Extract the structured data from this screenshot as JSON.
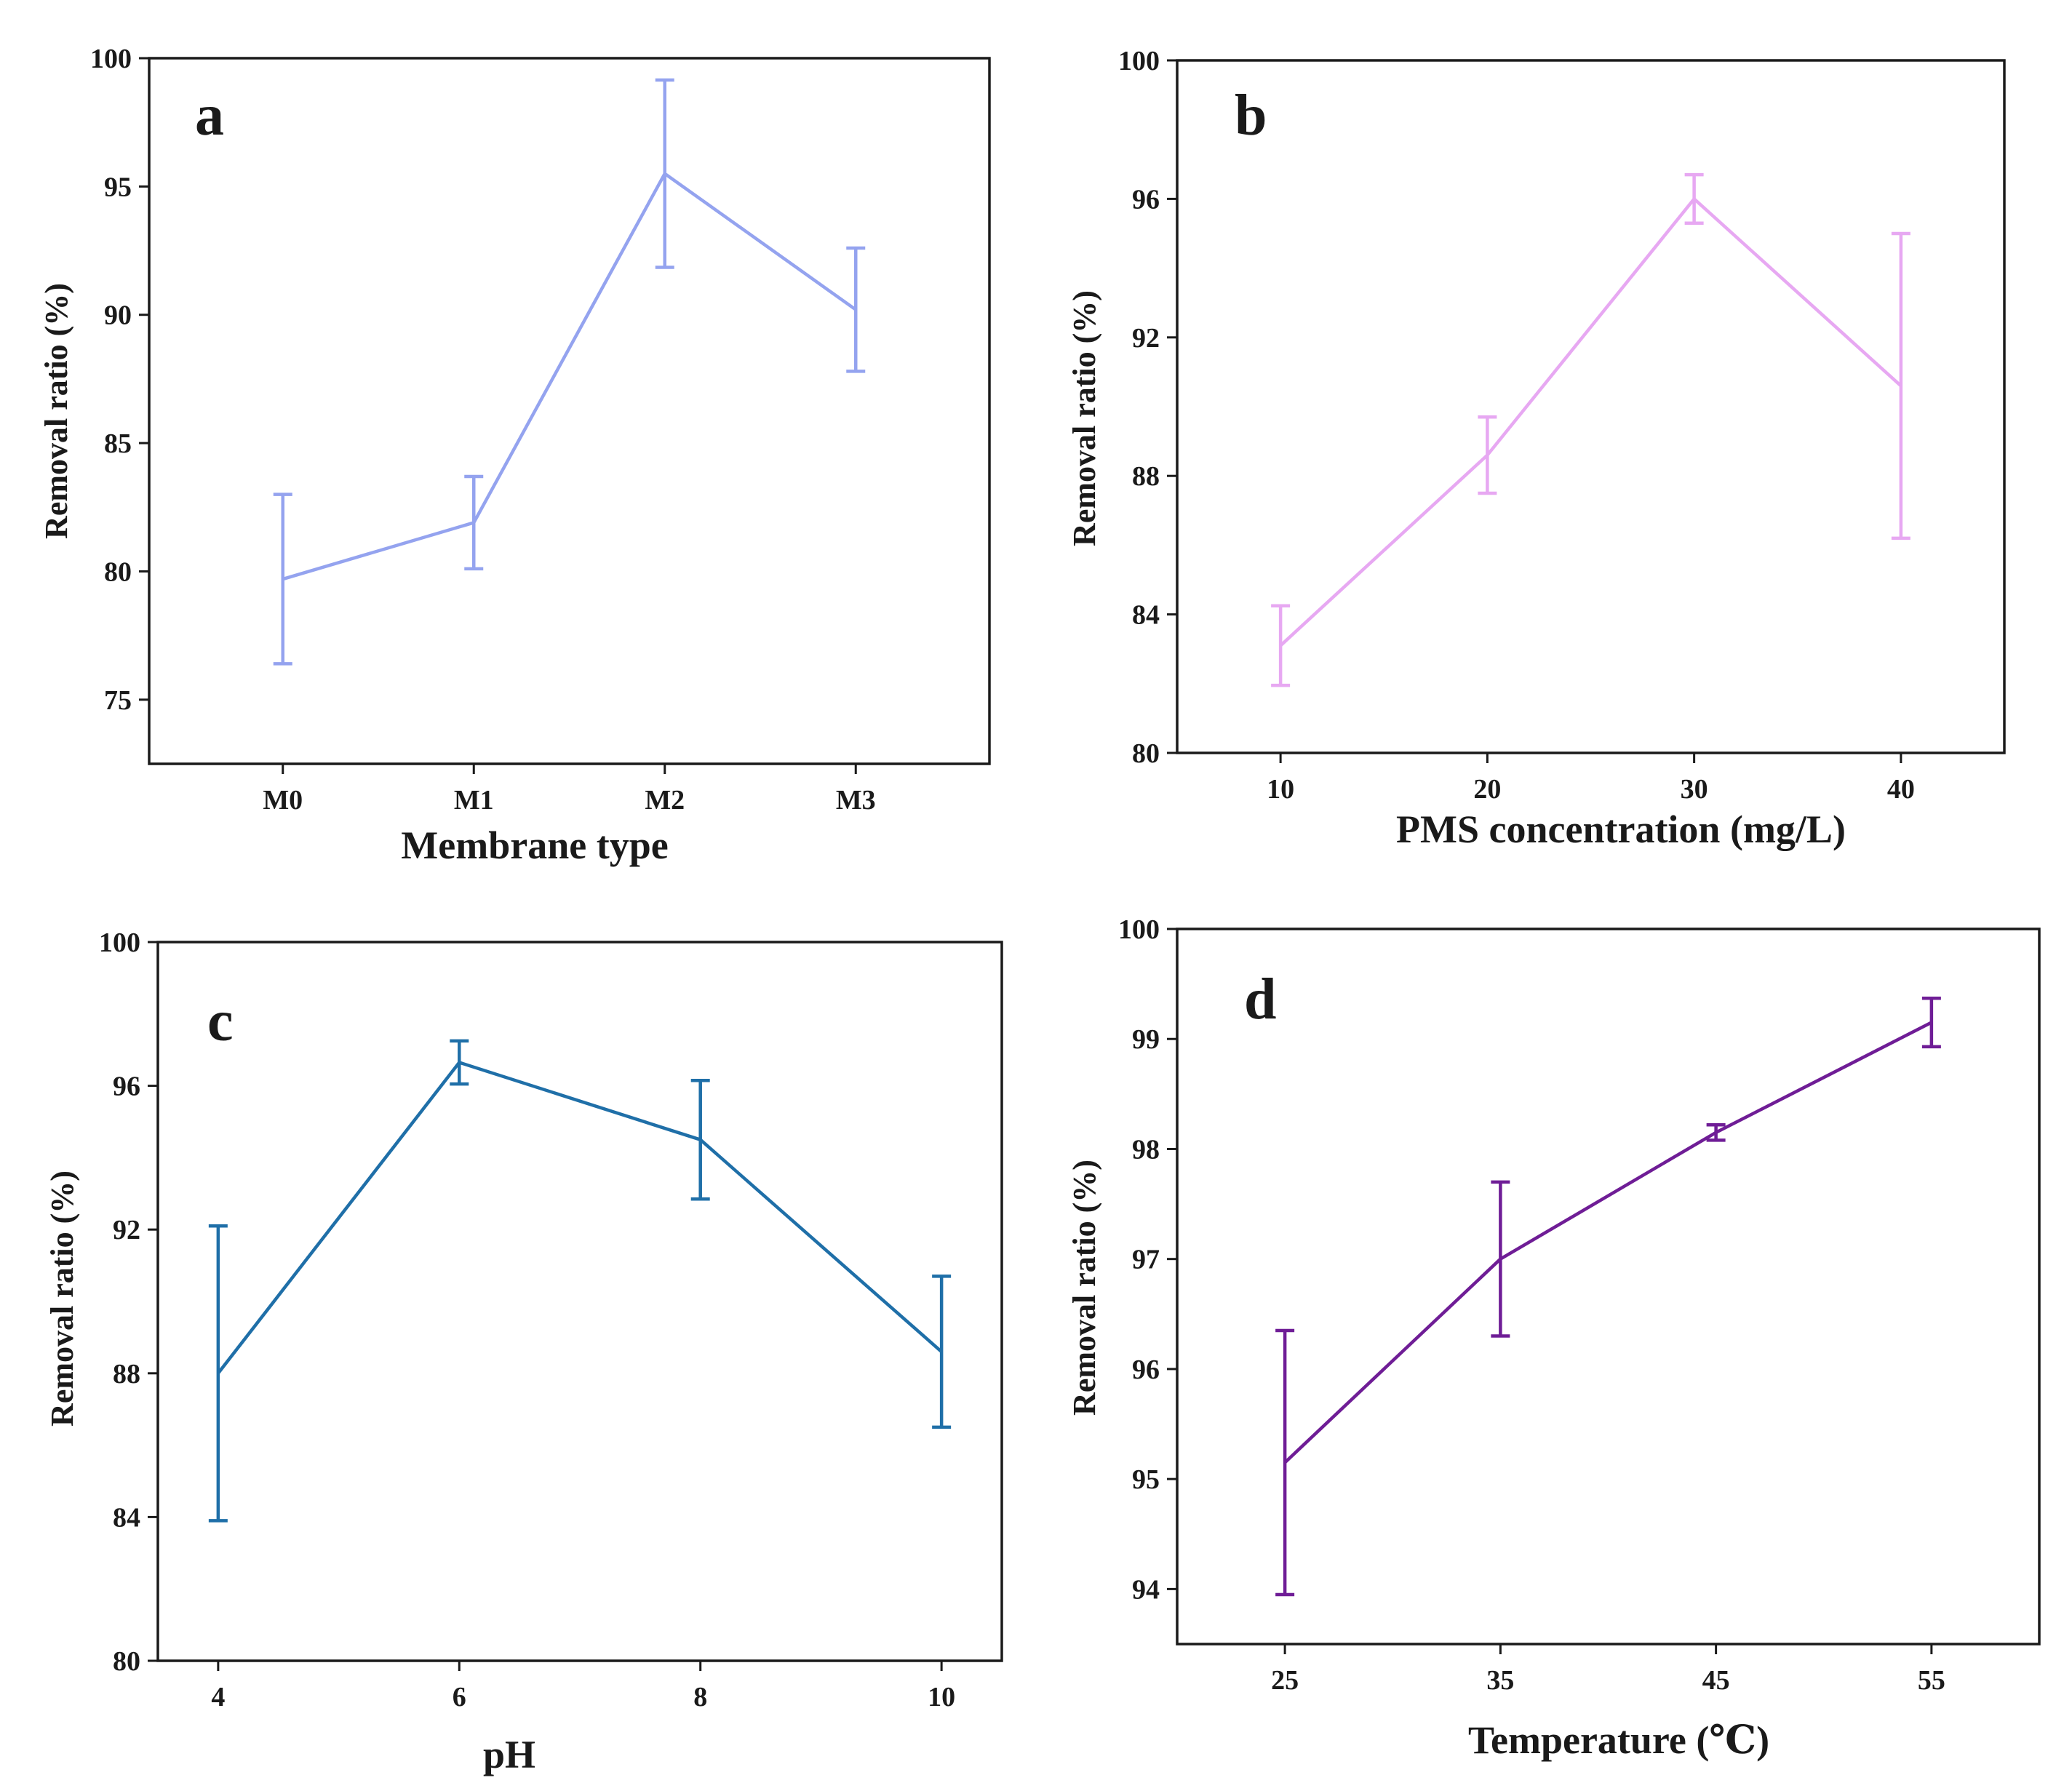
{
  "figure_title": "",
  "chart_data": [
    {
      "type": "line",
      "panel": "a",
      "title": "",
      "xlabel": "Membrane type",
      "ylabel": "Removal ratio (%)",
      "categories": [
        "M0",
        "M1",
        "M2",
        "M3"
      ],
      "x_tick_labels": [
        "M0",
        "M1",
        "M2",
        "M3"
      ],
      "ylim": [
        72.5,
        100
      ],
      "y_ticks": [
        75,
        80,
        85,
        90,
        95,
        100
      ],
      "y_tick_labels": [
        "75",
        "80",
        "85",
        "90",
        "95",
        "100"
      ],
      "series": [
        {
          "name": "Removal ratio",
          "color": "#94a3ef",
          "values": [
            79.7,
            81.9,
            95.5,
            90.2
          ],
          "error": [
            3.3,
            1.8,
            3.65,
            2.4
          ]
        }
      ],
      "grid": false
    },
    {
      "type": "line",
      "panel": "b",
      "title": "",
      "xlabel": "PMS concentration (mg/L)",
      "ylabel": "Removal ratio (%)",
      "x": [
        10,
        20,
        30,
        40
      ],
      "xlim": [
        5,
        45
      ],
      "x_ticks": [
        10,
        20,
        30,
        40
      ],
      "x_tick_labels": [
        "10",
        "20",
        "30",
        "40"
      ],
      "ylim": [
        80,
        100
      ],
      "y_ticks": [
        80,
        84,
        88,
        92,
        96,
        100
      ],
      "y_tick_labels": [
        "80",
        "84",
        "88",
        "92",
        "96",
        "100"
      ],
      "series": [
        {
          "name": "Removal ratio",
          "color": "#e7a8f2",
          "values": [
            83.1,
            88.6,
            96.0,
            90.6
          ],
          "error": [
            1.15,
            1.1,
            0.7,
            4.4
          ]
        }
      ],
      "grid": false
    },
    {
      "type": "line",
      "panel": "c",
      "title": "",
      "xlabel": "pH",
      "ylabel": "Removal ratio (%)",
      "x": [
        4,
        6,
        8,
        10
      ],
      "xlim": [
        3.5,
        10.5
      ],
      "x_ticks": [
        4,
        6,
        8,
        10
      ],
      "x_tick_labels": [
        "4",
        "6",
        "8",
        "10"
      ],
      "ylim": [
        80,
        100
      ],
      "y_ticks": [
        80,
        84,
        88,
        92,
        96,
        100
      ],
      "y_tick_labels": [
        "80",
        "84",
        "88",
        "92",
        "96",
        "100"
      ],
      "series": [
        {
          "name": "Removal ratio",
          "color": "#1f6fa8",
          "values": [
            88.0,
            96.65,
            94.5,
            88.6
          ],
          "error": [
            4.1,
            0.6,
            1.65,
            2.1
          ]
        }
      ],
      "grid": false
    },
    {
      "type": "line",
      "panel": "d",
      "title": "",
      "xlabel": "Temperature (℃)",
      "ylabel": "Removal ratio (%)",
      "x": [
        25,
        35,
        45,
        55
      ],
      "xlim": [
        20,
        60
      ],
      "x_ticks": [
        25,
        35,
        45,
        55
      ],
      "x_tick_labels": [
        "25",
        "35",
        "45",
        "55"
      ],
      "ylim": [
        93.5,
        100
      ],
      "y_ticks": [
        94,
        95,
        96,
        97,
        98,
        99,
        100
      ],
      "y_tick_labels": [
        "94",
        "95",
        "96",
        "97",
        "98",
        "99",
        "100"
      ],
      "series": [
        {
          "name": "Removal ratio",
          "color": "#6f1d96",
          "values": [
            95.15,
            97.0,
            98.15,
            99.15
          ],
          "error": [
            1.2,
            0.7,
            0.07,
            0.22
          ]
        }
      ],
      "grid": false
    }
  ]
}
